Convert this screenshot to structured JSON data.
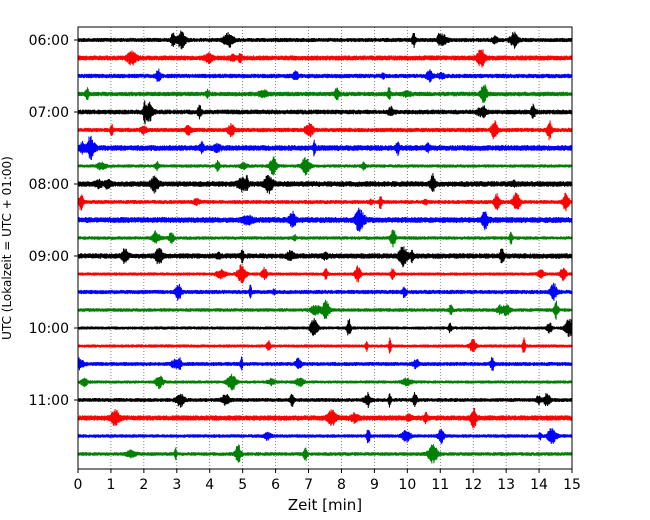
{
  "chart_data": {
    "type": "line",
    "title": "",
    "xlabel": "Zeit  [min]",
    "ylabel": "UTC (Lokalzeit = UTC + 01:00)",
    "xlim": [
      0,
      15
    ],
    "x_ticks": [
      0,
      1,
      2,
      3,
      4,
      5,
      6,
      7,
      8,
      9,
      10,
      11,
      12,
      13,
      14,
      15
    ],
    "y_tick_labels": [
      "06:00",
      "07:00",
      "08:00",
      "09:00",
      "10:00",
      "11:00"
    ],
    "trace_interval_minutes": 15,
    "trace_start": "06:00",
    "trace_count": 24,
    "trace_colors": [
      "#000000",
      "#ff0000",
      "#0000ff",
      "#008000"
    ],
    "grid": "vertical dotted",
    "legend": "none",
    "traces": [
      {
        "start": "06:00",
        "color": "#000000"
      },
      {
        "start": "06:15",
        "color": "#ff0000"
      },
      {
        "start": "06:30",
        "color": "#0000ff"
      },
      {
        "start": "06:45",
        "color": "#008000"
      },
      {
        "start": "07:00",
        "color": "#000000"
      },
      {
        "start": "07:15",
        "color": "#ff0000"
      },
      {
        "start": "07:30",
        "color": "#0000ff"
      },
      {
        "start": "07:45",
        "color": "#008000"
      },
      {
        "start": "08:00",
        "color": "#000000"
      },
      {
        "start": "08:15",
        "color": "#ff0000"
      },
      {
        "start": "08:30",
        "color": "#0000ff"
      },
      {
        "start": "08:45",
        "color": "#008000"
      },
      {
        "start": "09:00",
        "color": "#000000"
      },
      {
        "start": "09:15",
        "color": "#ff0000"
      },
      {
        "start": "09:30",
        "color": "#0000ff"
      },
      {
        "start": "09:45",
        "color": "#008000"
      },
      {
        "start": "10:00",
        "color": "#000000"
      },
      {
        "start": "10:15",
        "color": "#ff0000"
      },
      {
        "start": "10:30",
        "color": "#0000ff"
      },
      {
        "start": "10:45",
        "color": "#008000"
      },
      {
        "start": "11:00",
        "color": "#000000"
      },
      {
        "start": "11:15",
        "color": "#ff0000"
      },
      {
        "start": "11:30",
        "color": "#0000ff"
      },
      {
        "start": "11:45",
        "color": "#008000"
      }
    ]
  }
}
